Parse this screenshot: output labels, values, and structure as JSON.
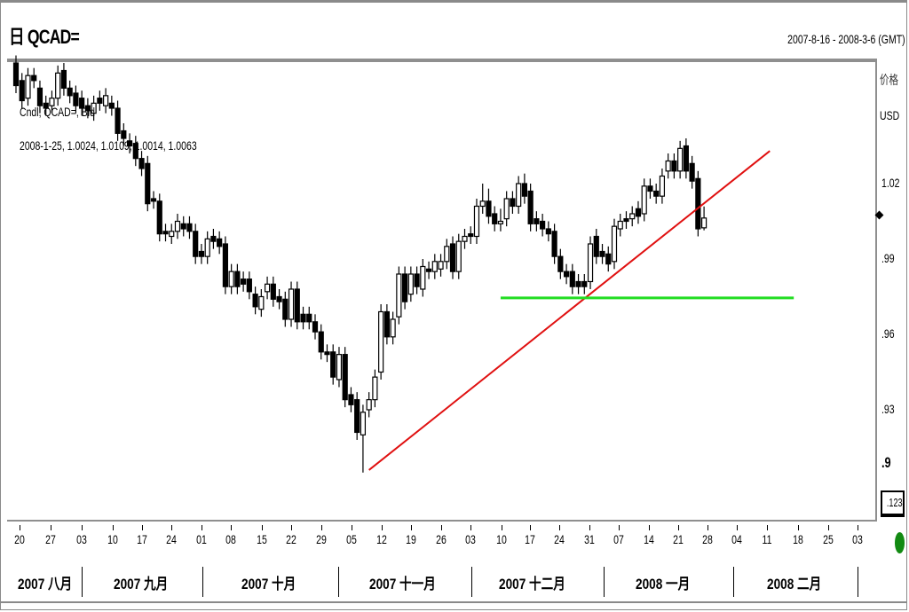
{
  "header": {
    "title": "日 QCAD=",
    "date_range": "2007-8-16 - 2008-3-6 (GMT)"
  },
  "legend": {
    "series": "Cndl, QCAD=, Bid",
    "readout": "2008-1-25, 1.0024, 1.0109, 1.0014, 1.0063"
  },
  "y_axis": {
    "label": "价格",
    "unit": "USD",
    "ticks": [
      "1.02",
      ".99",
      ".96",
      ".93",
      ".9"
    ],
    "price_box": ".1234"
  },
  "status_color": "#128a12",
  "x_axis": {
    "day_ticks": [
      "20",
      "27",
      "03",
      "10",
      "17",
      "24",
      "01",
      "08",
      "15",
      "22",
      "29",
      "05",
      "12",
      "19",
      "26",
      "03",
      "10",
      "17",
      "24",
      "31",
      "07",
      "14",
      "21",
      "28",
      "04",
      "11",
      "18",
      "25",
      "03"
    ],
    "months": [
      "2007 八月",
      "2007 九月",
      "2007 十月",
      "2007 十一月",
      "2007 十二月",
      "2008 一月",
      "2008 二月"
    ]
  },
  "chart_data": {
    "type": "candlestick",
    "title": "QCAD=",
    "ylabel": "价格 USD",
    "ylim": [
      0.89,
      1.07
    ],
    "colors": {
      "up": "#ffffff",
      "down": "#000000",
      "trendline": "#e01010",
      "support": "#22dd22"
    },
    "candles_ohlc": [
      [
        1.068,
        1.071,
        1.056,
        1.059
      ],
      [
        1.061,
        1.064,
        1.05,
        1.053
      ],
      [
        1.054,
        1.066,
        1.051,
        1.063
      ],
      [
        1.063,
        1.066,
        1.058,
        1.061
      ],
      [
        1.058,
        1.061,
        1.048,
        1.051
      ],
      [
        1.052,
        1.055,
        1.047,
        1.05
      ],
      [
        1.051,
        1.057,
        1.048,
        1.054
      ],
      [
        1.054,
        1.067,
        1.051,
        1.064
      ],
      [
        1.065,
        1.068,
        1.055,
        1.058
      ],
      [
        1.058,
        1.061,
        1.052,
        1.055
      ],
      [
        1.056,
        1.059,
        1.048,
        1.051
      ],
      [
        1.054,
        1.057,
        1.047,
        1.05
      ],
      [
        1.051,
        1.054,
        1.046,
        1.049
      ],
      [
        1.048,
        1.055,
        1.045,
        1.052
      ],
      [
        1.054,
        1.057,
        1.049,
        1.052
      ],
      [
        1.051,
        1.058,
        1.048,
        1.055
      ],
      [
        1.052,
        1.055,
        1.047,
        1.05
      ],
      [
        1.05,
        1.053,
        1.037,
        1.04
      ],
      [
        1.041,
        1.044,
        1.035,
        1.038
      ],
      [
        1.037,
        1.04,
        1.032,
        1.035
      ],
      [
        1.036,
        1.039,
        1.027,
        1.03
      ],
      [
        1.03,
        1.033,
        1.023,
        1.026
      ],
      [
        1.028,
        1.031,
        1.009,
        1.012
      ],
      [
        1.014,
        1.017,
        1.01,
        1.013
      ],
      [
        1.013,
        1.016,
        0.997,
        1.0
      ],
      [
        1.001,
        1.004,
        0.997,
        1.0
      ],
      [
        0.999,
        1.004,
        0.996,
        1.001
      ],
      [
        1.001,
        1.008,
        0.998,
        1.005
      ],
      [
        1.004,
        1.007,
        0.999,
        1.002
      ],
      [
        1.004,
        1.007,
        0.998,
        1.001
      ],
      [
        1.001,
        1.004,
        0.988,
        0.991
      ],
      [
        0.993,
        0.996,
        0.988,
        0.991
      ],
      [
        0.991,
        1.001,
        0.988,
        0.998
      ],
      [
        0.999,
        1.002,
        0.994,
        0.997
      ],
      [
        0.998,
        1.001,
        0.992,
        0.995
      ],
      [
        0.996,
        0.999,
        0.976,
        0.979
      ],
      [
        0.979,
        0.988,
        0.976,
        0.985
      ],
      [
        0.985,
        0.988,
        0.976,
        0.979
      ],
      [
        0.982,
        0.985,
        0.977,
        0.98
      ],
      [
        0.982,
        0.985,
        0.974,
        0.977
      ],
      [
        0.976,
        0.979,
        0.968,
        0.971
      ],
      [
        0.97,
        0.978,
        0.967,
        0.975
      ],
      [
        0.977,
        0.983,
        0.974,
        0.98
      ],
      [
        0.98,
        0.983,
        0.971,
        0.974
      ],
      [
        0.975,
        0.978,
        0.97,
        0.973
      ],
      [
        0.974,
        0.977,
        0.963,
        0.966
      ],
      [
        0.966,
        0.981,
        0.963,
        0.978
      ],
      [
        0.978,
        0.981,
        0.962,
        0.965
      ],
      [
        0.968,
        0.971,
        0.962,
        0.965
      ],
      [
        0.968,
        0.971,
        0.962,
        0.965
      ],
      [
        0.965,
        0.968,
        0.958,
        0.961
      ],
      [
        0.961,
        0.964,
        0.95,
        0.953
      ],
      [
        0.953,
        0.956,
        0.949,
        0.952
      ],
      [
        0.953,
        0.956,
        0.94,
        0.943
      ],
      [
        0.942,
        0.955,
        0.939,
        0.952
      ],
      [
        0.952,
        0.955,
        0.931,
        0.934
      ],
      [
        0.936,
        0.939,
        0.929,
        0.932
      ],
      [
        0.934,
        0.937,
        0.918,
        0.921
      ],
      [
        0.92,
        0.932,
        0.905,
        0.929
      ],
      [
        0.93,
        0.937,
        0.927,
        0.934
      ],
      [
        0.934,
        0.946,
        0.931,
        0.943
      ],
      [
        0.945,
        0.972,
        0.942,
        0.969
      ],
      [
        0.969,
        0.972,
        0.956,
        0.959
      ],
      [
        0.959,
        0.969,
        0.956,
        0.966
      ],
      [
        0.967,
        0.987,
        0.964,
        0.984
      ],
      [
        0.984,
        0.987,
        0.97,
        0.973
      ],
      [
        0.976,
        0.987,
        0.973,
        0.984
      ],
      [
        0.984,
        0.987,
        0.976,
        0.979
      ],
      [
        0.978,
        0.99,
        0.975,
        0.987
      ],
      [
        0.986,
        0.989,
        0.982,
        0.985
      ],
      [
        0.985,
        0.992,
        0.982,
        0.989
      ],
      [
        0.986,
        0.992,
        0.983,
        0.989
      ],
      [
        0.989,
        0.998,
        0.986,
        0.995
      ],
      [
        0.996,
        0.999,
        0.982,
        0.985
      ],
      [
        0.985,
        1.0,
        0.982,
        0.997
      ],
      [
        0.997,
        1.002,
        0.994,
        0.999
      ],
      [
        1.0,
        1.003,
        0.996,
        0.999
      ],
      [
        0.999,
        1.014,
        0.996,
        1.011
      ],
      [
        1.011,
        1.02,
        1.008,
        1.013
      ],
      [
        1.013,
        1.018,
        1.004,
        1.007
      ],
      [
        1.008,
        1.011,
        1.001,
        1.004
      ],
      [
        1.004,
        1.01,
        1.001,
        1.005
      ],
      [
        1.006,
        1.017,
        1.003,
        1.014
      ],
      [
        1.014,
        1.017,
        1.008,
        1.011
      ],
      [
        1.011,
        1.023,
        1.008,
        1.02
      ],
      [
        1.02,
        1.024,
        1.012,
        1.015
      ],
      [
        1.017,
        1.02,
        1.001,
        1.004
      ],
      [
        1.006,
        1.009,
        1.001,
        1.004
      ],
      [
        1.005,
        1.008,
        0.999,
        1.002
      ],
      [
        1.002,
        1.005,
        0.997,
        1.0
      ],
      [
        1.001,
        1.004,
        0.988,
        0.991
      ],
      [
        0.991,
        0.994,
        0.982,
        0.985
      ],
      [
        0.985,
        0.988,
        0.98,
        0.983
      ],
      [
        0.985,
        0.988,
        0.976,
        0.979
      ],
      [
        0.981,
        0.984,
        0.976,
        0.979
      ],
      [
        0.981,
        0.984,
        0.976,
        0.979
      ],
      [
        0.981,
        0.999,
        0.978,
        0.996
      ],
      [
        0.999,
        1.002,
        0.988,
        0.991
      ],
      [
        0.993,
        0.996,
        0.988,
        0.991
      ],
      [
        0.992,
        0.995,
        0.985,
        0.988
      ],
      [
        0.989,
        1.006,
        0.986,
        1.003
      ],
      [
        1.002,
        1.008,
        0.999,
        1.005
      ],
      [
        1.006,
        1.009,
        1.002,
        1.005
      ],
      [
        1.006,
        1.011,
        1.003,
        1.008
      ],
      [
        1.01,
        1.013,
        1.004,
        1.007
      ],
      [
        1.008,
        1.022,
        1.005,
        1.019
      ],
      [
        1.019,
        1.022,
        1.014,
        1.017
      ],
      [
        1.017,
        1.02,
        1.012,
        1.015
      ],
      [
        1.015,
        1.026,
        1.012,
        1.023
      ],
      [
        1.025,
        1.032,
        1.022,
        1.029
      ],
      [
        1.029,
        1.032,
        1.022,
        1.025
      ],
      [
        1.025,
        1.037,
        1.022,
        1.034
      ],
      [
        1.035,
        1.038,
        1.022,
        1.025
      ],
      [
        1.028,
        1.031,
        1.018,
        1.021
      ],
      [
        1.022,
        1.025,
        0.999,
        1.002
      ],
      [
        1.0024,
        1.0109,
        1.0014,
        1.0063
      ]
    ],
    "trendline": {
      "from": {
        "bar": 59,
        "value": 0.906
      },
      "to": {
        "bar": 126,
        "value": 1.033
      }
    },
    "support_line": {
      "from_bar": 81,
      "to_bar": 130,
      "value": 0.9745
    }
  }
}
